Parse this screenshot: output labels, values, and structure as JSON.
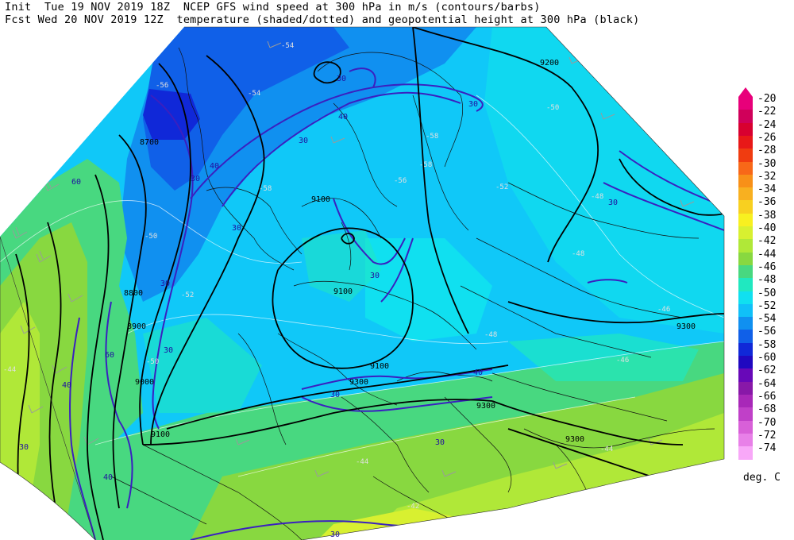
{
  "header": {
    "line1": "Init  Tue 19 NOV 2019 18Z  NCEP GFS wind speed at 300 hPa in m/s (contours/barbs)",
    "line2": "Fcst Wed 20 NOV 2019 12Z  temperature (shaded/dotted) and geopotential height at 300 hPa (black)"
  },
  "legend": {
    "units": "deg. C",
    "entries": [
      {
        "label": "-20",
        "color": "#e8007a"
      },
      {
        "label": "-22",
        "color": "#d0005a"
      },
      {
        "label": "-24",
        "color": "#d80030"
      },
      {
        "label": "-26",
        "color": "#e81818"
      },
      {
        "label": "-28",
        "color": "#f03c10"
      },
      {
        "label": "-30",
        "color": "#f86818"
      },
      {
        "label": "-32",
        "color": "#f89018"
      },
      {
        "label": "-34",
        "color": "#f8b020"
      },
      {
        "label": "-36",
        "color": "#f8d020"
      },
      {
        "label": "-38",
        "color": "#f8f020"
      },
      {
        "label": "-40",
        "color": "#d8f030"
      },
      {
        "label": "-42",
        "color": "#b0e838"
      },
      {
        "label": "-44",
        "color": "#88d840"
      },
      {
        "label": "-46",
        "color": "#48d880"
      },
      {
        "label": "-48",
        "color": "#20e8c0"
      },
      {
        "label": "-50",
        "color": "#10e0f0"
      },
      {
        "label": "-52",
        "color": "#10c0f8"
      },
      {
        "label": "-54",
        "color": "#1090f0"
      },
      {
        "label": "-56",
        "color": "#1060e8"
      },
      {
        "label": "-58",
        "color": "#1028d8"
      },
      {
        "label": "-60",
        "color": "#2008c0"
      },
      {
        "label": "-62",
        "color": "#6808b8"
      },
      {
        "label": "-64",
        "color": "#8818a8"
      },
      {
        "label": "-66",
        "color": "#a828b8"
      },
      {
        "label": "-68",
        "color": "#c040c8"
      },
      {
        "label": "-70",
        "color": "#d860d8"
      },
      {
        "label": "-72",
        "color": "#e880e8"
      },
      {
        "label": "-74",
        "color": "#f8a8f8"
      }
    ]
  },
  "map": {
    "height_labels": [
      "9200",
      "8700",
      "9100",
      "9100",
      "8800",
      "8900",
      "9000",
      "9100",
      "9100",
      "9300",
      "9300",
      "9300",
      "9300"
    ],
    "wind_labels": [
      "30",
      "30",
      "40",
      "30",
      "40",
      "30",
      "30",
      "30",
      "30",
      "30",
      "60",
      "60",
      "40",
      "30",
      "40",
      "30",
      "30",
      "40",
      "30",
      "30"
    ],
    "temp_labels": [
      "-54",
      "-56",
      "-54",
      "-58",
      "-50",
      "-52",
      "-56",
      "-58",
      "-48",
      "-52",
      "-48",
      "-46",
      "-44",
      "-42",
      "-50",
      "-58",
      "-44",
      "-48",
      "-46",
      "-50",
      "-44"
    ]
  }
}
